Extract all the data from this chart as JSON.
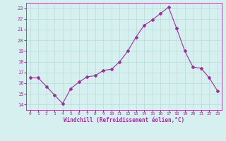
{
  "x": [
    0,
    1,
    2,
    3,
    4,
    5,
    6,
    7,
    8,
    9,
    10,
    11,
    12,
    13,
    14,
    15,
    16,
    17,
    18,
    19,
    20,
    21,
    22,
    23
  ],
  "y": [
    16.5,
    16.5,
    15.7,
    14.9,
    14.1,
    15.5,
    16.1,
    16.6,
    16.7,
    17.2,
    17.3,
    18.0,
    19.0,
    20.3,
    21.4,
    21.9,
    22.5,
    23.1,
    21.1,
    19.0,
    17.5,
    17.4,
    16.5,
    15.3
  ],
  "line_color": "#993399",
  "marker": "D",
  "marker_size": 2,
  "bg_color": "#d6f0f0",
  "grid_color": "#b8dada",
  "xlabel": "Windchill (Refroidissement éolien,°C)",
  "xlabel_color": "#993399",
  "tick_color": "#993399",
  "ylim": [
    13.5,
    23.5
  ],
  "xlim": [
    -0.5,
    23.5
  ],
  "yticks": [
    14,
    15,
    16,
    17,
    18,
    19,
    20,
    21,
    22,
    23
  ],
  "xticks": [
    0,
    1,
    2,
    3,
    4,
    5,
    6,
    7,
    8,
    9,
    10,
    11,
    12,
    13,
    14,
    15,
    16,
    17,
    18,
    19,
    20,
    21,
    22,
    23
  ]
}
